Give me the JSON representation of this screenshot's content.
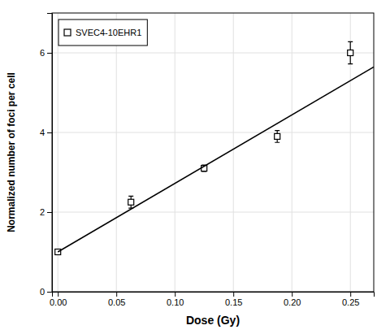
{
  "chart_data": {
    "type": "scatter",
    "xlabel": "Dose (Gy)",
    "ylabel": "Normalized number of foci per cell",
    "series": [
      {
        "name": "SVEC4-10EHR1",
        "type": "scatter",
        "marker": "square",
        "color": "#000000",
        "x": [
          0.0,
          0.0625,
          0.125,
          0.1875,
          0.25
        ],
        "values": [
          1.0,
          2.25,
          3.1,
          3.9,
          6.0
        ],
        "errors": [
          0.05,
          0.15,
          0.08,
          0.15,
          0.28
        ]
      },
      {
        "type": "line",
        "color": "#000000",
        "x": [
          0.0,
          0.27
        ],
        "values": [
          1.0,
          5.644
        ]
      }
    ],
    "xlim": [
      -0.005,
      0.27
    ],
    "ylim": [
      0,
      7
    ],
    "xticks": [
      {
        "value": 0.0,
        "label": "0.00"
      },
      {
        "value": 0.05,
        "label": "0.05"
      },
      {
        "value": 0.1,
        "label": "0.10"
      },
      {
        "value": 0.15,
        "label": "0.15"
      },
      {
        "value": 0.2,
        "label": "0.20"
      },
      {
        "value": 0.25,
        "label": "0.25"
      }
    ],
    "yticks": [
      0,
      2,
      4,
      6
    ],
    "grid": true,
    "legend": "upper left"
  }
}
